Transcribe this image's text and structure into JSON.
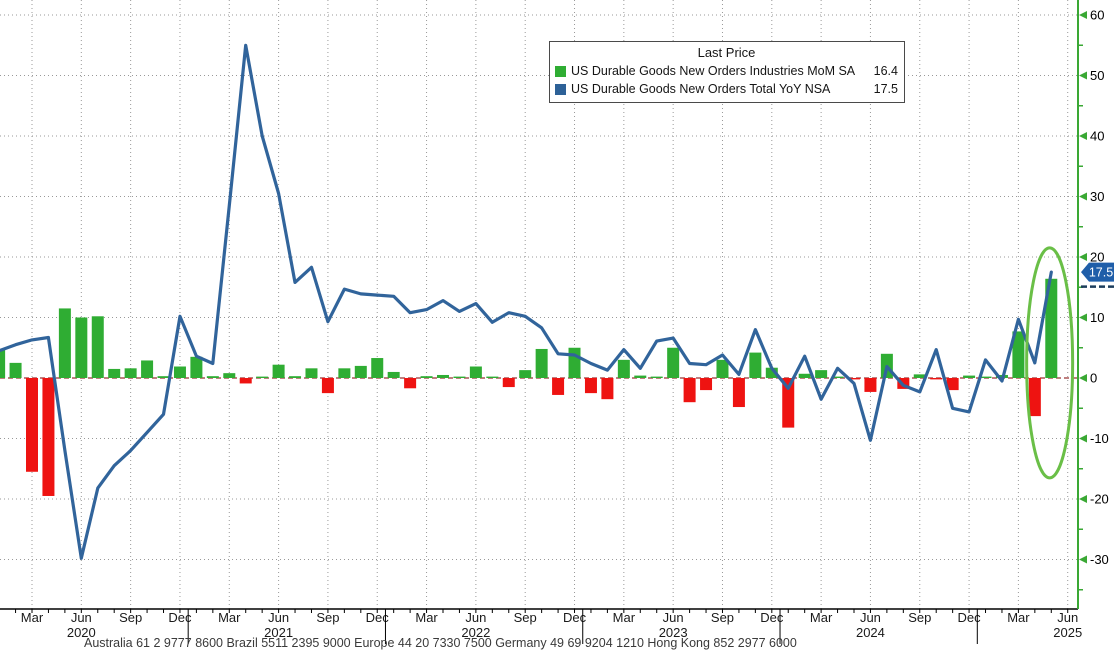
{
  "legend": {
    "title": "Last Price",
    "series": [
      {
        "label": "US Durable Goods New Orders Industries MoM SA",
        "value": "16.4",
        "color": "#2fad33"
      },
      {
        "label": "US Durable Goods New Orders Total YoY NSA",
        "value": "17.5",
        "color": "#2d6197"
      }
    ]
  },
  "y_axis": {
    "major_ticks": [
      60,
      50,
      40,
      30,
      20,
      10,
      0,
      -10,
      -20,
      -30
    ],
    "minor_step": 5,
    "axis_color": "#3aa834",
    "label_color": "#000000"
  },
  "x_axis": {
    "quarter_labels": [
      "Mar",
      "Jun",
      "Sep",
      "Dec"
    ],
    "years": [
      "2020",
      "2021",
      "2022",
      "2023",
      "2024",
      "2025"
    ],
    "label_color": "#1a1a1a"
  },
  "chart_data": {
    "type": "bar+line",
    "start_month": "2020-01",
    "end_month": "2025-06",
    "n_months": 66,
    "ylim": [
      -38,
      62.5
    ],
    "grid": true,
    "legend_position": "top-center",
    "series": [
      {
        "name": "US Durable Goods New Orders Industries MoM SA",
        "type": "bar",
        "last_value": 16.4,
        "color_positive": "#2fad33",
        "color_negative": "#ee1311",
        "values": [
          4.8,
          2.5,
          -15.5,
          -19.5,
          11.5,
          10.0,
          10.2,
          1.5,
          1.6,
          2.9,
          0.3,
          1.9,
          3.5,
          0.3,
          0.8,
          -0.9,
          0.2,
          2.2,
          0.3,
          1.6,
          -2.5,
          1.6,
          2.0,
          3.3,
          1.0,
          -1.7,
          0.3,
          0.5,
          0.2,
          1.9,
          0.1,
          -1.5,
          1.3,
          4.8,
          -2.8,
          5.0,
          -2.5,
          -3.5,
          3.0,
          0.4,
          0.2,
          5.0,
          -4.0,
          -2.0,
          3.0,
          -4.8,
          4.2,
          1.7,
          -8.2,
          0.7,
          1.3,
          0.2,
          -0.1,
          -2.3,
          4.0,
          -1.8,
          0.6,
          -0.1,
          -2.0,
          0.4,
          0.1,
          0.5,
          7.7,
          -6.3,
          16.4,
          null
        ]
      },
      {
        "name": "US Durable Goods New Orders Total YoY NSA",
        "type": "line",
        "last_value": 17.5,
        "color": "#31649b",
        "values": [
          4.5,
          5.5,
          6.3,
          6.7,
          -12.0,
          -29.8,
          -18.2,
          -14.5,
          -12.0,
          -9.0,
          -6.0,
          10.2,
          3.6,
          2.4,
          28.5,
          55.0,
          40.0,
          30.5,
          15.8,
          18.3,
          9.3,
          14.7,
          13.9,
          13.7,
          13.5,
          10.8,
          11.3,
          12.8,
          11.0,
          12.3,
          9.2,
          10.8,
          10.2,
          8.3,
          4.0,
          3.8,
          2.4,
          1.3,
          4.7,
          1.6,
          6.1,
          6.6,
          2.4,
          2.2,
          3.8,
          0.6,
          8.0,
          1.6,
          -1.7,
          3.6,
          -3.5,
          1.6,
          -0.9,
          -10.3,
          1.9,
          -1.2,
          -2.3,
          4.7,
          -5.0,
          -5.6,
          3.0,
          -0.5,
          9.7,
          2.5,
          17.5,
          null
        ]
      }
    ]
  },
  "annotations": {
    "zero_line_color": "#993333",
    "highlight_ellipse": {
      "color": "#6abf47"
    },
    "last_price_badge": {
      "text": "17.5",
      "fill": "#1f5ea9",
      "text_color": "#ffffff"
    }
  },
  "footer": "Australia 61 2 9777 8600 Brazil 5511 2395 9000 Europe 44 20 7330 7500 Germany 49 69 9204 1210 Hong Kong 852 2977 6000"
}
